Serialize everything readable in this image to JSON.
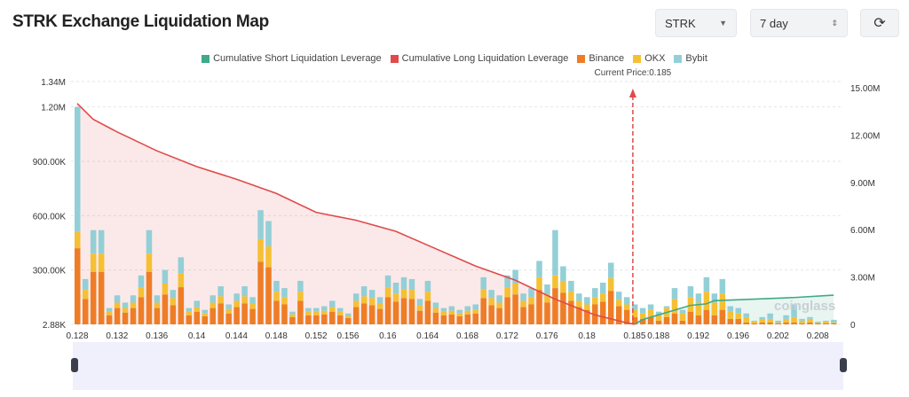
{
  "title": "STRK Exchange Liquidation Map",
  "controls": {
    "coin": "STRK",
    "period": "7 day",
    "refresh_icon": "refresh-icon"
  },
  "colors": {
    "short": "#3fa98a",
    "long": "#e04a4a",
    "binance": "#ee7d26",
    "okx": "#f5c033",
    "bybit": "#93cfd6"
  },
  "legend": [
    "Cumulative Short Liquidation Leverage",
    "Cumulative Long Liquidation Leverage",
    "Binance",
    "OKX",
    "Bybit"
  ],
  "watermark": "coinglass",
  "chart_data": {
    "type": "bar",
    "title": "STRK Exchange Liquidation Map",
    "current_price_label": "Current Price:0.185",
    "current_price_index": 70,
    "left_axis": {
      "ticks": [
        "2.88K",
        "300.00K",
        "600.00K",
        "900.00K",
        "1.20M",
        "1.34M"
      ],
      "tick_values": [
        2.88,
        300,
        600,
        900,
        1200,
        1340
      ],
      "range_k": [
        0,
        1340
      ]
    },
    "right_axis": {
      "ticks": [
        "0",
        "3.00M",
        "6.00M",
        "9.00M",
        "12.00M",
        "15.00M"
      ],
      "tick_values": [
        0,
        3,
        6,
        9,
        12,
        15
      ],
      "range_m": [
        0,
        15
      ]
    },
    "x_ticks": [
      {
        "i": 0,
        "label": "0.128"
      },
      {
        "i": 5,
        "label": "0.132"
      },
      {
        "i": 10,
        "label": "0.136"
      },
      {
        "i": 15,
        "label": "0.14"
      },
      {
        "i": 20,
        "label": "0.144"
      },
      {
        "i": 25,
        "label": "0.148"
      },
      {
        "i": 30,
        "label": "0.152"
      },
      {
        "i": 34,
        "label": "0.156"
      },
      {
        "i": 39,
        "label": "0.16"
      },
      {
        "i": 44,
        "label": "0.164"
      },
      {
        "i": 49,
        "label": "0.168"
      },
      {
        "i": 54,
        "label": "0.172"
      },
      {
        "i": 59,
        "label": "0.176"
      },
      {
        "i": 64,
        "label": "0.18"
      },
      {
        "i": 70,
        "label": "0.185"
      },
      {
        "i": 73,
        "label": "0.188"
      },
      {
        "i": 78,
        "label": "0.192"
      },
      {
        "i": 83,
        "label": "0.196"
      },
      {
        "i": 88,
        "label": "0.202"
      },
      {
        "i": 93,
        "label": "0.208"
      }
    ],
    "series": [
      {
        "name": "Binance",
        "unit": "K",
        "values": [
          420,
          140,
          290,
          290,
          50,
          90,
          65,
          90,
          150,
          290,
          90,
          165,
          105,
          205,
          50,
          70,
          45,
          90,
          115,
          60,
          95,
          115,
          85,
          345,
          315,
          130,
          110,
          40,
          130,
          50,
          50,
          55,
          70,
          50,
          35,
          95,
          115,
          105,
          85,
          150,
          125,
          145,
          140,
          75,
          130,
          65,
          50,
          55,
          45,
          55,
          60,
          145,
          105,
          90,
          150,
          165,
          95,
          110,
          190,
          120,
          200,
          175,
          130,
          95,
          80,
          110,
          125,
          185,
          100,
          80,
          40,
          30,
          40,
          20,
          40,
          60,
          20,
          70,
          50,
          80,
          50,
          80,
          30,
          30,
          10,
          5,
          10,
          10,
          5,
          10,
          10,
          5,
          10,
          5,
          5,
          5
        ]
      },
      {
        "name": "OKX",
        "unit": "K",
        "values": [
          90,
          50,
          100,
          100,
          20,
          30,
          25,
          30,
          55,
          100,
          30,
          60,
          40,
          75,
          20,
          25,
          15,
          30,
          40,
          25,
          35,
          40,
          30,
          125,
          115,
          50,
          40,
          15,
          50,
          20,
          20,
          20,
          25,
          20,
          10,
          35,
          40,
          40,
          30,
          55,
          45,
          50,
          50,
          30,
          50,
          25,
          20,
          20,
          15,
          20,
          20,
          50,
          40,
          30,
          55,
          60,
          35,
          40,
          70,
          45,
          70,
          65,
          50,
          35,
          30,
          40,
          45,
          70,
          35,
          30,
          40,
          30,
          40,
          30,
          50,
          80,
          40,
          80,
          70,
          100,
          70,
          90,
          40,
          30,
          30,
          10,
          15,
          20,
          5,
          20,
          30,
          15,
          20,
          5,
          10,
          5
        ]
      },
      {
        "name": "Bybit",
        "unit": "K",
        "values": [
          690,
          60,
          130,
          130,
          20,
          40,
          30,
          40,
          65,
          130,
          40,
          75,
          45,
          90,
          20,
          35,
          20,
          40,
          55,
          25,
          40,
          55,
          35,
          160,
          140,
          60,
          50,
          15,
          60,
          20,
          20,
          25,
          35,
          20,
          15,
          40,
          55,
          45,
          35,
          65,
          60,
          65,
          60,
          35,
          60,
          30,
          20,
          25,
          20,
          25,
          30,
          65,
          45,
          40,
          65,
          75,
          40,
          50,
          90,
          55,
          250,
          80,
          60,
          40,
          40,
          50,
          60,
          85,
          45,
          40,
          30,
          30,
          30,
          20,
          10,
          60,
          20,
          60,
          50,
          80,
          50,
          80,
          30,
          30,
          20,
          5,
          15,
          30,
          10,
          20,
          70,
          10,
          10,
          5,
          5,
          15
        ]
      },
      {
        "name": "Cumulative Long Liquidation Leverage",
        "unit": "M",
        "points": [
          [
            0,
            14
          ],
          [
            2,
            13
          ],
          [
            5,
            12.2
          ],
          [
            10,
            11
          ],
          [
            15,
            10
          ],
          [
            20,
            9.2
          ],
          [
            25,
            8.3
          ],
          [
            30,
            7.1
          ],
          [
            35,
            6.6
          ],
          [
            40,
            5.9
          ],
          [
            45,
            4.8
          ],
          [
            50,
            3.7
          ],
          [
            55,
            2.8
          ],
          [
            60,
            1.6
          ],
          [
            65,
            0.6
          ],
          [
            69,
            0.1
          ],
          [
            70,
            0
          ]
        ]
      },
      {
        "name": "Cumulative Short Liquidation Leverage",
        "unit": "M",
        "points": [
          [
            70,
            0
          ],
          [
            71,
            0.3
          ],
          [
            73,
            0.6
          ],
          [
            75,
            0.9
          ],
          [
            77,
            1.2
          ],
          [
            79,
            1.3
          ],
          [
            80,
            1.5
          ],
          [
            85,
            1.6
          ],
          [
            90,
            1.7
          ],
          [
            95,
            1.85
          ]
        ]
      }
    ]
  }
}
